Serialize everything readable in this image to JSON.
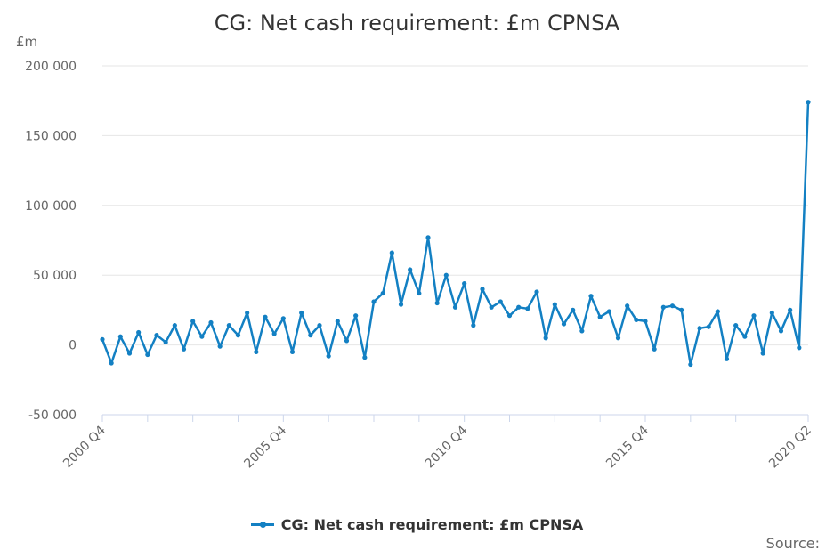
{
  "chart_data": {
    "type": "line",
    "title": "CG: Net cash requirement: £m CPNSA",
    "ylabel": "£m",
    "ylim": [
      -50000,
      200000
    ],
    "yticks": [
      -50000,
      0,
      50000,
      100000,
      150000,
      200000
    ],
    "ytick_labels": [
      "-50 000",
      "0",
      "50 000",
      "100 000",
      "150 000",
      "200 000"
    ],
    "xtick_labels": [
      "2000 Q4",
      "2005 Q4",
      "2010 Q4",
      "2015 Q4",
      "2020 Q2"
    ],
    "xtick_label_index": [
      0,
      20,
      40,
      60,
      78
    ],
    "minor_tick_every": 5,
    "grid": true,
    "legend_position": "bottom",
    "source_label": "Source:",
    "line_color": "#1380c3",
    "x": [
      "2000 Q4",
      "2001 Q1",
      "2001 Q2",
      "2001 Q3",
      "2001 Q4",
      "2002 Q1",
      "2002 Q2",
      "2002 Q3",
      "2002 Q4",
      "2003 Q1",
      "2003 Q2",
      "2003 Q3",
      "2003 Q4",
      "2004 Q1",
      "2004 Q2",
      "2004 Q3",
      "2004 Q4",
      "2005 Q1",
      "2005 Q2",
      "2005 Q3",
      "2005 Q4",
      "2006 Q1",
      "2006 Q2",
      "2006 Q3",
      "2006 Q4",
      "2007 Q1",
      "2007 Q2",
      "2007 Q3",
      "2007 Q4",
      "2008 Q1",
      "2008 Q2",
      "2008 Q3",
      "2008 Q4",
      "2009 Q1",
      "2009 Q2",
      "2009 Q3",
      "2009 Q4",
      "2010 Q1",
      "2010 Q2",
      "2010 Q3",
      "2010 Q4",
      "2011 Q1",
      "2011 Q2",
      "2011 Q3",
      "2011 Q4",
      "2012 Q1",
      "2012 Q2",
      "2012 Q3",
      "2012 Q4",
      "2013 Q1",
      "2013 Q2",
      "2013 Q3",
      "2013 Q4",
      "2014 Q1",
      "2014 Q2",
      "2014 Q3",
      "2014 Q4",
      "2015 Q1",
      "2015 Q2",
      "2015 Q3",
      "2015 Q4",
      "2016 Q1",
      "2016 Q2",
      "2016 Q3",
      "2016 Q4",
      "2017 Q1",
      "2017 Q2",
      "2017 Q3",
      "2017 Q4",
      "2018 Q1",
      "2018 Q2",
      "2018 Q3",
      "2018 Q4",
      "2019 Q1",
      "2019 Q2",
      "2019 Q3",
      "2019 Q4",
      "2020 Q1",
      "2020 Q2"
    ],
    "series": [
      {
        "name": "CG: Net cash requirement: £m CPNSA",
        "values": [
          4000,
          -13000,
          6000,
          -6000,
          9000,
          -7000,
          7000,
          2000,
          14000,
          -3000,
          17000,
          6000,
          16000,
          -1000,
          14000,
          7000,
          23000,
          -5000,
          20000,
          8000,
          19000,
          -5000,
          23000,
          7000,
          14000,
          -8000,
          17000,
          3000,
          21000,
          -9000,
          31000,
          37000,
          66000,
          29000,
          54000,
          37000,
          77000,
          30000,
          50000,
          27000,
          44000,
          14000,
          40000,
          27000,
          31000,
          21000,
          27000,
          26000,
          38000,
          5000,
          29000,
          15000,
          25000,
          10000,
          35000,
          20000,
          24000,
          5000,
          28000,
          18000,
          17000,
          -3000,
          27000,
          28000,
          25000,
          -14000,
          12000,
          13000,
          24000,
          -10000,
          14000,
          6000,
          21000,
          -6000,
          23000,
          10000,
          25000,
          -2000,
          174000
        ]
      }
    ]
  }
}
